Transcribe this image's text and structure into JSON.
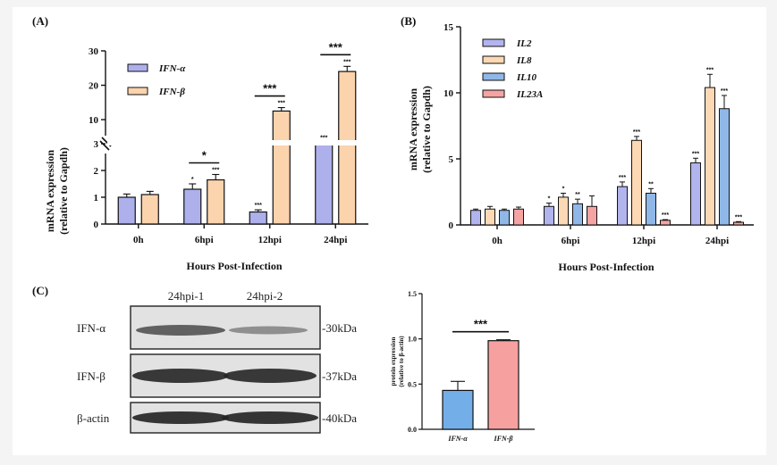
{
  "chart_data": [
    {
      "panel": "(A)",
      "type": "bar",
      "categories": [
        "0h",
        "6hpi",
        "12hpi",
        "24hpi"
      ],
      "xlabel": "Hours Post-Infection",
      "ylabel_line1": "mRNA expression",
      "ylabel_line2": "(relative to Gapdh)",
      "y_axis_break": true,
      "y_ticks": [
        "0",
        "1",
        "2",
        "3",
        "10",
        "20",
        "30"
      ],
      "series": [
        {
          "name": "IFN-α",
          "color": "#aeb0ec",
          "values": [
            1.0,
            1.3,
            0.45,
            3.3
          ],
          "errors": [
            0.12,
            0.2,
            0.08,
            0.1
          ],
          "sig": [
            "",
            "*",
            "***",
            "***"
          ]
        },
        {
          "name": "IFN-β",
          "color": "#fbd3ad",
          "values": [
            1.1,
            1.65,
            12.5,
            24.0
          ],
          "errors": [
            0.12,
            0.2,
            1.0,
            1.5
          ],
          "sig": [
            "",
            "***",
            "***",
            "***"
          ]
        }
      ],
      "comparisons": [
        {
          "category": "6hpi",
          "label": "*"
        },
        {
          "category": "12hpi",
          "label": "***"
        },
        {
          "category": "24hpi",
          "label": "***"
        }
      ]
    },
    {
      "panel": "(B)",
      "type": "bar",
      "categories": [
        "0h",
        "6hpi",
        "12hpi",
        "24hpi"
      ],
      "xlabel": "Hours Post-Infection",
      "ylabel_line1": "mRNA expression",
      "ylabel_line2": "(relative to Gapdh)",
      "ylim": [
        0,
        15
      ],
      "y_ticks": [
        "0",
        "5",
        "10",
        "15"
      ],
      "series": [
        {
          "name": "IL2",
          "color": "#b2b4ee",
          "values": [
            1.1,
            1.4,
            2.9,
            4.7
          ],
          "errors": [
            0.1,
            0.25,
            0.35,
            0.35
          ],
          "sig": [
            "",
            "*",
            "***",
            "***"
          ]
        },
        {
          "name": "IL8",
          "color": "#fcd8b4",
          "values": [
            1.2,
            2.1,
            6.4,
            10.4
          ],
          "errors": [
            0.2,
            0.3,
            0.3,
            1.0
          ],
          "sig": [
            "",
            "*",
            "***",
            "***"
          ]
        },
        {
          "name": "IL10",
          "color": "#8fb8e8",
          "values": [
            1.1,
            1.6,
            2.4,
            8.8
          ],
          "errors": [
            0.1,
            0.35,
            0.35,
            1.0
          ],
          "sig": [
            "",
            "**",
            "**",
            "***"
          ]
        },
        {
          "name": "IL23A",
          "color": "#f5a3a3",
          "values": [
            1.2,
            1.4,
            0.35,
            0.2
          ],
          "errors": [
            0.15,
            0.8,
            0.05,
            0.05
          ],
          "sig": [
            "",
            "",
            "***",
            "***"
          ]
        }
      ]
    },
    {
      "panel": "(C)",
      "type": "bar",
      "categories": [
        "IFN-α",
        "IFN-β"
      ],
      "ylabel_line1": "protein expression",
      "ylabel_line2": "(relative to β-actin)",
      "ylim": [
        0,
        1.5
      ],
      "y_ticks": [
        "0.0",
        "0.5",
        "1.0",
        "1.5"
      ],
      "colors": [
        "#74aee8",
        "#f7a0a0"
      ],
      "values": [
        0.43,
        0.98
      ],
      "errors": [
        0.1,
        0.01
      ],
      "comparison": "***"
    }
  ],
  "blot": {
    "lane_labels": [
      "24hpi-1",
      "24hpi-2"
    ],
    "rows": [
      {
        "protein": "IFN-α",
        "size": "-30kDa"
      },
      {
        "protein": "IFN-β",
        "size": "-37kDa"
      },
      {
        "protein": "β-actin",
        "size": "-40kDa"
      }
    ]
  }
}
